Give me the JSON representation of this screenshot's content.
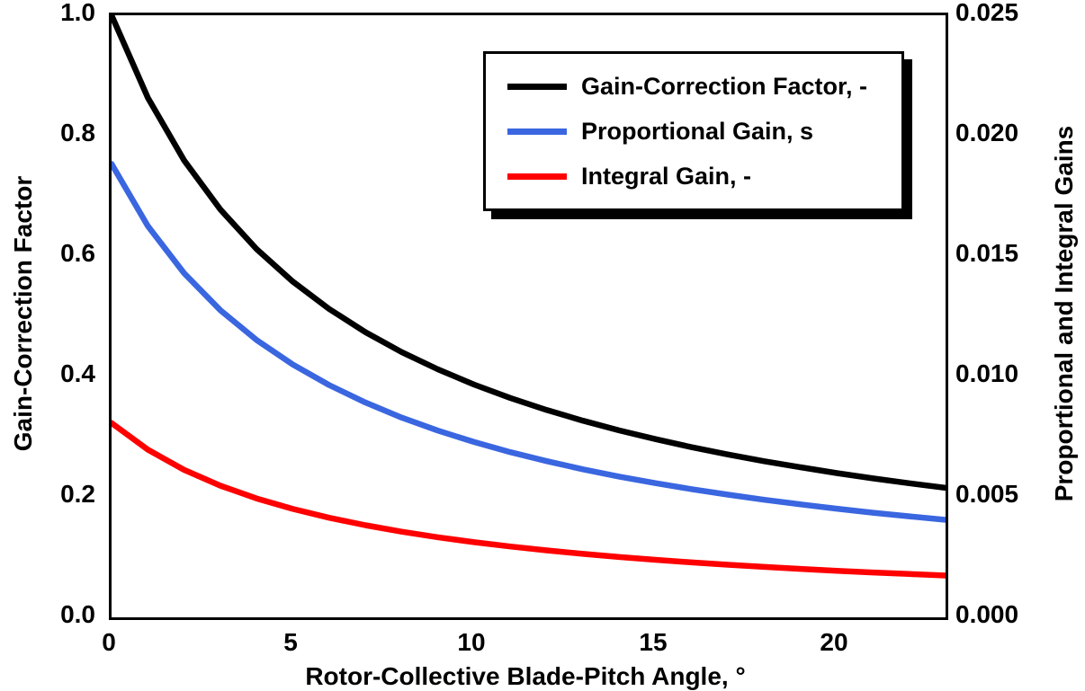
{
  "chart_data": {
    "type": "line",
    "title": "",
    "xlabel": "Rotor-Collective Blade-Pitch Angle, °",
    "xlim": [
      0,
      23
    ],
    "x_ticks": [
      0,
      5,
      10,
      15,
      20
    ],
    "x_tick_labels": [
      "0",
      "5",
      "10",
      "15",
      "20"
    ],
    "x": [
      0,
      1,
      2,
      3,
      4,
      5,
      6,
      7,
      8,
      9,
      10,
      11,
      12,
      13,
      14,
      15,
      16,
      17,
      18,
      19,
      20,
      21,
      22,
      23
    ],
    "left_axis": {
      "label": "Gain-Correction Factor",
      "lim": [
        0,
        1
      ],
      "tick_values": [
        1.0,
        0.8,
        0.6,
        0.4,
        0.2,
        0.0
      ],
      "tick_labels": [
        "1.0",
        "0.8",
        "0.6",
        "0.4",
        "0.2",
        "0.0"
      ]
    },
    "right_axis": {
      "label": "Proportional and Integral Gains",
      "lim": [
        0,
        0.025
      ],
      "tick_values": [
        0.025,
        0.02,
        0.015,
        0.01,
        0.005,
        0.0
      ],
      "tick_labels": [
        "0.025",
        "0.020",
        "0.015",
        "0.010",
        "0.005",
        "0.000"
      ]
    },
    "grid": false,
    "legend_position": "top-right-inside",
    "series": [
      {
        "name": "Gain-Correction Factor, -",
        "axis": "left",
        "color": "#000000",
        "values": [
          1.0,
          0.8631,
          0.7591,
          0.6775,
          0.6117,
          0.5576,
          0.5123,
          0.4738,
          0.4406,
          0.4119,
          0.3866,
          0.3643,
          0.3444,
          0.3265,
          0.3104,
          0.2959,
          0.2826,
          0.2705,
          0.2593,
          0.2492,
          0.2396,
          0.2307,
          0.2227,
          0.2151
        ]
      },
      {
        "name": "Proportional Gain, s",
        "axis": "right",
        "color": "#3A66E0",
        "values": [
          0.018827,
          0.016249,
          0.014291,
          0.012755,
          0.011516,
          0.010498,
          0.009645,
          0.00892,
          0.008295,
          0.007755,
          0.007278,
          0.006859,
          0.006484,
          0.006147,
          0.005844,
          0.005571,
          0.00532,
          0.005093,
          0.004882,
          0.004691,
          0.004511,
          0.004343,
          0.004193,
          0.00405
        ]
      },
      {
        "name": "Integral Gain, -",
        "axis": "right",
        "color": "#FF0000",
        "values": [
          0.008069,
          0.006964,
          0.006125,
          0.005467,
          0.004936,
          0.004499,
          0.004134,
          0.003823,
          0.003555,
          0.003323,
          0.003119,
          0.002939,
          0.002779,
          0.002634,
          0.002505,
          0.002388,
          0.00228,
          0.002183,
          0.002092,
          0.002011,
          0.001933,
          0.001862,
          0.001797,
          0.001736
        ]
      }
    ]
  },
  "colors": {
    "axis": "#000000",
    "background": "#ffffff",
    "legend_border": "#000000",
    "legend_shadow": "#000000"
  }
}
